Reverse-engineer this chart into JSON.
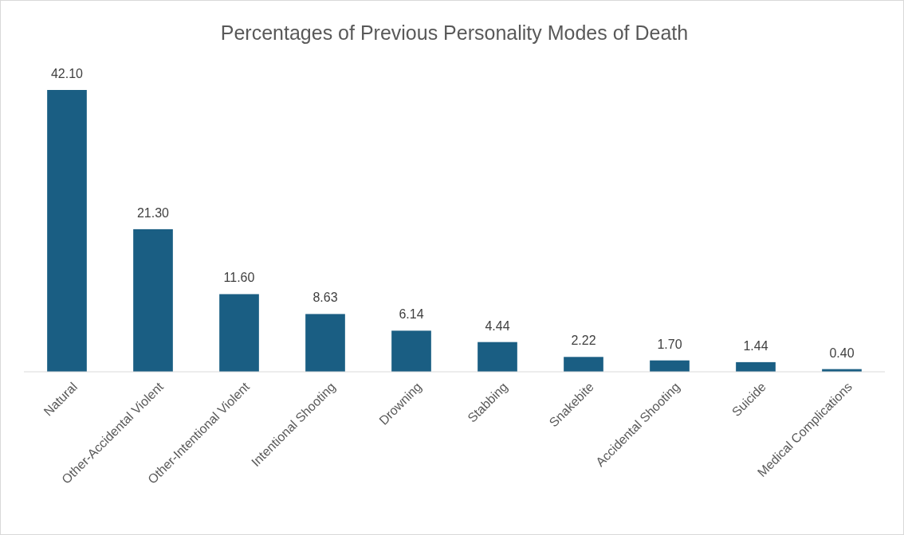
{
  "chart_data": {
    "type": "bar",
    "title": "Percentages of Previous Personality  Modes of Death",
    "categories": [
      "Natural",
      "Other-Accidental Violent",
      "Other-Intentional Violent",
      "Intentional Shooting",
      "Drowning",
      "Stabbing",
      "Snakebite",
      "Accidental Shooting",
      "Suicide",
      "Medical Complications"
    ],
    "values": [
      42.1,
      21.3,
      11.6,
      8.63,
      6.14,
      4.44,
      2.22,
      1.7,
      1.44,
      0.4
    ],
    "value_labels": [
      "42.10",
      "21.30",
      "11.60",
      "8.63",
      "6.14",
      "4.44",
      "2.22",
      "1.70",
      "1.44",
      "0.40"
    ],
    "color": "#1a5e83"
  }
}
